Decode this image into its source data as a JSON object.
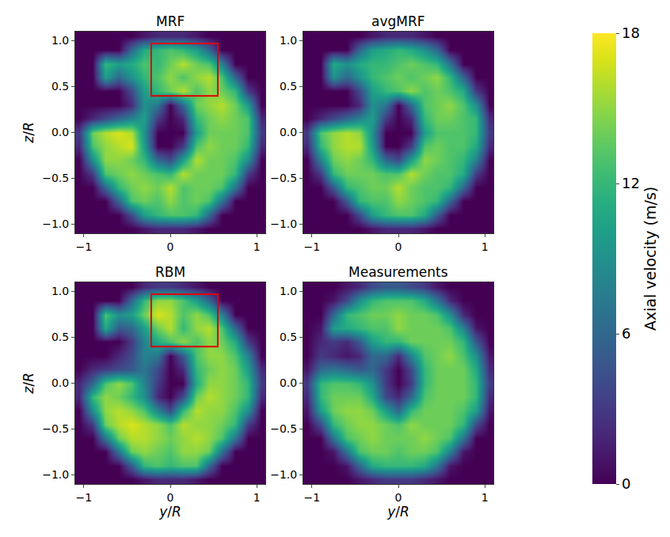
{
  "chart_data": {
    "type": "heatmap",
    "xlim": [
      -1.1,
      1.1
    ],
    "ylim": [
      -1.1,
      1.1
    ],
    "xticks": [
      {
        "value": -1,
        "label": "−1"
      },
      0,
      1
    ],
    "yticks": [
      {
        "value": -1,
        "label": "−1.0"
      },
      {
        "value": -0.5,
        "label": "−0.5"
      },
      {
        "value": 0,
        "label": "0.0"
      },
      {
        "value": 0.5,
        "label": "0.5"
      },
      {
        "value": 1,
        "label": "1.0"
      }
    ],
    "colorbar": {
      "title": "Axial velocity (m/s)",
      "range": [
        0,
        18
      ],
      "ticks": [
        0,
        6,
        12,
        18
      ]
    },
    "panels": [
      {
        "title": "MRF",
        "ylabel": "z/R",
        "highlight": {
          "x": [
            -0.22,
            0.55
          ],
          "y": [
            0.4,
            0.97
          ]
        },
        "x": [
          -1.05,
          -0.9,
          -0.75,
          -0.6,
          -0.45,
          -0.3,
          -0.15,
          0,
          0.15,
          0.3,
          0.45,
          0.6,
          0.75,
          0.9,
          1.05
        ],
        "y": [
          -1.05,
          -0.9,
          -0.75,
          -0.6,
          -0.45,
          -0.3,
          -0.15,
          0,
          0.15,
          0.3,
          0.45,
          0.6,
          0.75,
          0.9,
          1.05
        ],
        "z": [
          [
            0,
            0,
            0,
            0,
            0,
            1,
            2,
            2,
            2,
            1,
            0,
            0,
            0,
            0,
            0
          ],
          [
            0,
            0,
            0,
            0,
            4,
            10,
            12,
            13,
            13,
            12,
            6,
            0,
            0,
            0,
            0
          ],
          [
            0,
            0,
            0,
            6,
            13,
            14,
            13,
            15,
            13,
            14,
            13,
            7,
            0,
            0,
            0
          ],
          [
            0,
            0,
            6,
            12,
            14,
            15,
            14,
            16,
            13,
            14,
            14,
            13,
            7,
            0,
            0
          ],
          [
            0,
            3,
            13,
            14,
            15,
            14,
            13,
            12,
            16,
            14,
            14,
            14,
            12,
            3,
            0
          ],
          [
            0,
            9,
            15,
            15,
            14,
            12,
            6,
            4,
            10,
            16,
            14,
            14,
            13,
            9,
            0
          ],
          [
            2,
            13,
            15,
            16,
            17,
            10,
            0,
            0,
            3,
            13,
            15,
            14,
            14,
            12,
            2
          ],
          [
            3,
            14,
            16,
            17,
            16,
            9,
            0,
            0,
            0,
            10,
            14,
            14,
            14,
            13,
            3
          ],
          [
            0,
            2,
            4,
            6,
            8,
            10,
            3,
            0,
            2,
            12,
            14,
            15,
            14,
            13,
            2
          ],
          [
            0,
            0,
            0,
            0,
            2,
            9,
            7,
            0,
            6,
            14,
            15,
            16,
            14,
            10,
            0
          ],
          [
            0,
            0,
            0,
            0,
            4,
            10,
            12,
            14,
            16,
            13,
            15,
            14,
            12,
            3,
            0
          ],
          [
            0,
            0,
            10,
            6,
            9,
            12,
            13,
            15,
            13,
            15,
            16,
            13,
            6,
            0,
            0
          ],
          [
            0,
            0,
            12,
            10,
            11,
            13,
            12,
            14,
            16,
            14,
            13,
            8,
            0,
            0,
            0
          ],
          [
            0,
            0,
            0,
            0,
            6,
            11,
            12,
            13,
            12,
            10,
            6,
            0,
            0,
            0,
            0
          ],
          [
            0,
            0,
            0,
            0,
            0,
            1,
            2,
            2,
            2,
            1,
            0,
            0,
            0,
            0,
            0
          ]
        ]
      },
      {
        "title": "avgMRF",
        "x": [
          -1.05,
          -0.9,
          -0.75,
          -0.6,
          -0.45,
          -0.3,
          -0.15,
          0,
          0.15,
          0.3,
          0.45,
          0.6,
          0.75,
          0.9,
          1.05
        ],
        "y": [
          -1.05,
          -0.9,
          -0.75,
          -0.6,
          -0.45,
          -0.3,
          -0.15,
          0,
          0.15,
          0.3,
          0.45,
          0.6,
          0.75,
          0.9,
          1.05
        ],
        "z": [
          [
            0,
            0,
            0,
            0,
            0,
            1,
            2,
            2,
            2,
            1,
            0,
            0,
            0,
            0,
            0
          ],
          [
            0,
            0,
            0,
            0,
            4,
            10,
            12,
            13,
            13,
            11,
            5,
            0,
            0,
            0,
            0
          ],
          [
            0,
            0,
            0,
            5,
            12,
            13,
            13,
            15,
            14,
            13,
            12,
            6,
            0,
            0,
            0
          ],
          [
            0,
            0,
            5,
            12,
            13,
            14,
            14,
            16,
            14,
            13,
            13,
            12,
            6,
            0,
            0
          ],
          [
            0,
            3,
            12,
            14,
            14,
            14,
            13,
            13,
            16,
            14,
            13,
            13,
            11,
            3,
            0
          ],
          [
            0,
            8,
            14,
            15,
            14,
            12,
            6,
            4,
            10,
            15,
            14,
            13,
            12,
            8,
            0
          ],
          [
            2,
            12,
            15,
            16,
            16,
            10,
            0,
            0,
            3,
            13,
            14,
            13,
            13,
            11,
            2
          ],
          [
            3,
            13,
            15,
            16,
            15,
            9,
            0,
            0,
            0,
            10,
            13,
            13,
            13,
            12,
            3
          ],
          [
            0,
            2,
            4,
            6,
            8,
            10,
            3,
            0,
            2,
            12,
            14,
            14,
            13,
            12,
            2
          ],
          [
            0,
            0,
            0,
            0,
            2,
            9,
            7,
            0,
            6,
            13,
            14,
            15,
            13,
            9,
            0
          ],
          [
            0,
            0,
            0,
            0,
            4,
            10,
            12,
            13,
            15,
            13,
            14,
            13,
            11,
            3,
            0
          ],
          [
            0,
            0,
            9,
            6,
            9,
            12,
            13,
            14,
            13,
            14,
            15,
            12,
            6,
            0,
            0
          ],
          [
            0,
            0,
            11,
            9,
            11,
            12,
            12,
            13,
            14,
            13,
            12,
            7,
            0,
            0,
            0
          ],
          [
            0,
            0,
            0,
            0,
            6,
            10,
            11,
            12,
            11,
            9,
            6,
            0,
            0,
            0,
            0
          ],
          [
            0,
            0,
            0,
            0,
            0,
            1,
            2,
            2,
            2,
            1,
            0,
            0,
            0,
            0,
            0
          ]
        ]
      },
      {
        "title": "RBM",
        "xlabel": "y/R",
        "ylabel": "z/R",
        "highlight": {
          "x": [
            -0.22,
            0.55
          ],
          "y": [
            0.4,
            0.97
          ]
        },
        "x": [
          -1.05,
          -0.9,
          -0.75,
          -0.6,
          -0.45,
          -0.3,
          -0.15,
          0,
          0.15,
          0.3,
          0.45,
          0.6,
          0.75,
          0.9,
          1.05
        ],
        "y": [
          -1.05,
          -0.9,
          -0.75,
          -0.6,
          -0.45,
          -0.3,
          -0.15,
          0,
          0.15,
          0.3,
          0.45,
          0.6,
          0.75,
          0.9,
          1.05
        ],
        "z": [
          [
            0,
            0,
            0,
            0,
            0,
            1,
            2,
            2,
            2,
            1,
            0,
            0,
            0,
            0,
            0
          ],
          [
            0,
            0,
            0,
            0,
            5,
            12,
            13,
            12,
            13,
            13,
            6,
            0,
            0,
            0,
            0
          ],
          [
            0,
            0,
            0,
            7,
            14,
            15,
            14,
            13,
            15,
            15,
            14,
            7,
            0,
            0,
            0
          ],
          [
            0,
            0,
            7,
            14,
            16,
            16,
            15,
            14,
            15,
            16,
            15,
            13,
            7,
            0,
            0
          ],
          [
            0,
            3,
            14,
            16,
            17,
            16,
            15,
            13,
            16,
            15,
            15,
            14,
            12,
            3,
            0
          ],
          [
            0,
            9,
            15,
            16,
            15,
            13,
            8,
            4,
            12,
            16,
            15,
            15,
            13,
            9,
            0
          ],
          [
            2,
            12,
            15,
            14,
            12,
            9,
            2,
            0,
            4,
            14,
            16,
            15,
            14,
            12,
            2
          ],
          [
            2,
            6,
            13,
            15,
            13,
            8,
            3,
            0,
            0,
            11,
            15,
            15,
            14,
            12,
            3
          ],
          [
            0,
            2,
            3,
            4,
            5,
            7,
            4,
            0,
            2,
            12,
            14,
            15,
            14,
            10,
            2
          ],
          [
            0,
            0,
            0,
            2,
            4,
            8,
            7,
            0,
            5,
            13,
            15,
            15,
            13,
            8,
            0
          ],
          [
            0,
            0,
            0,
            0,
            3,
            8,
            11,
            13,
            15,
            13,
            15,
            14,
            11,
            3,
            0
          ],
          [
            0,
            0,
            11,
            5,
            6,
            10,
            14,
            16,
            12,
            15,
            16,
            13,
            6,
            0,
            0
          ],
          [
            0,
            0,
            13,
            9,
            10,
            14,
            17,
            16,
            13,
            15,
            13,
            8,
            0,
            0,
            0
          ],
          [
            0,
            0,
            0,
            0,
            6,
            12,
            15,
            15,
            13,
            10,
            6,
            0,
            0,
            0,
            0
          ],
          [
            0,
            0,
            0,
            0,
            0,
            2,
            3,
            3,
            2,
            1,
            0,
            0,
            0,
            0,
            0
          ]
        ]
      },
      {
        "title": "Measurements",
        "xlabel": "y/R",
        "x": [
          -1.05,
          -0.9,
          -0.75,
          -0.6,
          -0.45,
          -0.3,
          -0.15,
          0,
          0.15,
          0.3,
          0.45,
          0.6,
          0.75,
          0.9,
          1.05
        ],
        "y": [
          -1.05,
          -0.9,
          -0.75,
          -0.6,
          -0.45,
          -0.3,
          -0.15,
          0,
          0.15,
          0.3,
          0.45,
          0.6,
          0.75,
          0.9,
          1.05
        ],
        "z": [
          [
            0,
            0,
            0,
            0,
            1,
            2,
            3,
            3,
            3,
            2,
            1,
            0,
            0,
            0,
            0
          ],
          [
            0,
            0,
            0,
            1,
            6,
            11,
            12,
            12,
            12,
            11,
            7,
            1,
            0,
            0,
            0
          ],
          [
            0,
            0,
            1,
            7,
            13,
            14,
            14,
            13,
            14,
            14,
            13,
            8,
            1,
            0,
            0
          ],
          [
            0,
            0,
            7,
            13,
            14,
            15,
            14,
            14,
            14,
            15,
            14,
            13,
            7,
            0,
            0
          ],
          [
            0,
            4,
            12,
            14,
            15,
            15,
            14,
            13,
            15,
            14,
            14,
            14,
            12,
            4,
            0
          ],
          [
            1,
            10,
            14,
            15,
            15,
            14,
            10,
            6,
            12,
            14,
            14,
            14,
            13,
            10,
            1
          ],
          [
            2,
            12,
            14,
            14,
            14,
            11,
            4,
            2,
            6,
            13,
            14,
            14,
            14,
            12,
            2
          ],
          [
            3,
            12,
            13,
            13,
            12,
            9,
            3,
            0,
            3,
            12,
            14,
            14,
            14,
            12,
            3
          ],
          [
            1,
            6,
            7,
            6,
            5,
            6,
            3,
            0,
            4,
            12,
            14,
            14,
            14,
            11,
            2
          ],
          [
            0,
            3,
            2,
            1,
            2,
            6,
            6,
            2,
            8,
            13,
            14,
            15,
            13,
            9,
            1
          ],
          [
            0,
            2,
            3,
            2,
            5,
            10,
            12,
            12,
            14,
            14,
            14,
            14,
            12,
            5,
            0
          ],
          [
            0,
            1,
            10,
            11,
            12,
            13,
            13,
            15,
            14,
            14,
            14,
            13,
            8,
            1,
            0
          ],
          [
            0,
            0,
            6,
            12,
            13,
            14,
            14,
            15,
            14,
            14,
            13,
            9,
            2,
            0,
            0
          ],
          [
            0,
            0,
            1,
            4,
            9,
            12,
            13,
            13,
            13,
            11,
            7,
            2,
            0,
            0,
            0
          ],
          [
            0,
            0,
            0,
            1,
            2,
            4,
            5,
            5,
            4,
            3,
            1,
            0,
            0,
            0,
            0
          ]
        ]
      }
    ]
  }
}
